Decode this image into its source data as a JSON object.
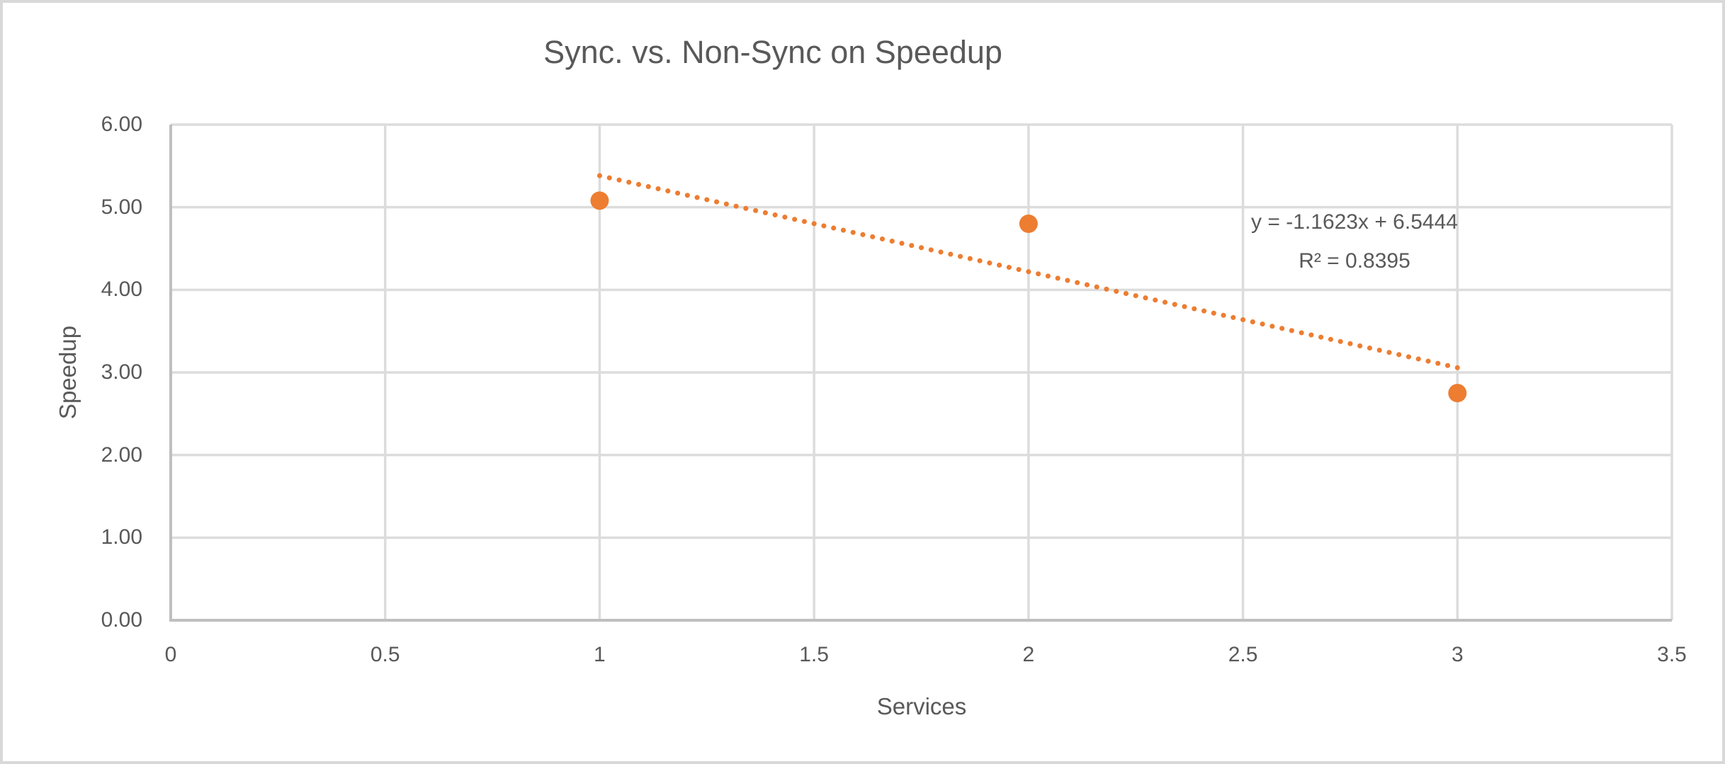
{
  "window": {
    "background": "#ffffff",
    "frame_border_color": "#d9d9d9"
  },
  "chart_data": {
    "type": "scatter",
    "title": "Sync. vs. Non-Sync on Speedup",
    "xlabel": "Services",
    "ylabel": "Speedup",
    "xlim": [
      0,
      3.5
    ],
    "ylim": [
      0,
      6
    ],
    "grid": true,
    "legend": "none",
    "x_ticks": [
      0,
      0.5,
      1,
      1.5,
      2,
      2.5,
      3,
      3.5
    ],
    "x_tick_labels": [
      "0",
      "0.5",
      "1",
      "1.5",
      "2",
      "2.5",
      "3",
      "3.5"
    ],
    "y_ticks": [
      0,
      1,
      2,
      3,
      4,
      5,
      6
    ],
    "y_tick_labels": [
      "0.00",
      "1.00",
      "2.00",
      "3.00",
      "4.00",
      "5.00",
      "6.00"
    ],
    "series": [
      {
        "name": "Speedup",
        "marker": "circle",
        "color": "#ED7D31",
        "points": [
          {
            "x": 1,
            "y": 5.08
          },
          {
            "x": 2,
            "y": 4.8
          },
          {
            "x": 3,
            "y": 2.75
          }
        ]
      }
    ],
    "trendline": {
      "style": "dotted",
      "color": "#ED7D31",
      "slope": -1.1623,
      "intercept": 6.5444,
      "x_start": 1,
      "x_end": 3,
      "equation_label": "y = -1.1623x + 6.5444",
      "r_squared_label": "R² = 0.8395"
    },
    "colors": {
      "text": "#595959",
      "gridline": "#dcdcdc",
      "axis_line": "#bfbfbf",
      "marker": "#ED7D31"
    }
  }
}
